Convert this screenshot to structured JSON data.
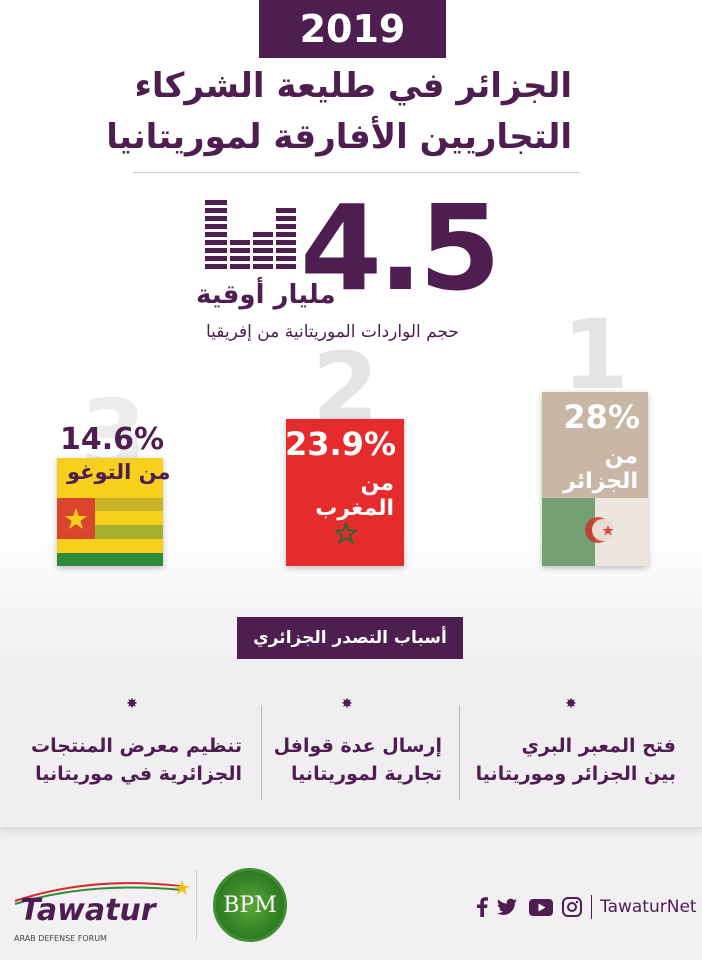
{
  "header": {
    "year": "2019",
    "title_line1": "الجزائر في طليعة الشركاء",
    "title_line2": "التجاريين الأفارقة لموريتانيا"
  },
  "headline_stat": {
    "value": "4.5",
    "unit": "مليار أوقية",
    "caption": "حجم الواردات الموريتانية من إفريقيا"
  },
  "partners": [
    {
      "rank": "1",
      "percent": "28%",
      "label": "من الجزائر",
      "flag": "algeria-flag"
    },
    {
      "rank": "2",
      "percent": "23.9%",
      "label": "من المغرب",
      "flag": "morocco-flag"
    },
    {
      "rank": "3",
      "percent": "14.6%",
      "label": "من التوغو",
      "flag": "togo-flag"
    }
  ],
  "reasons": {
    "heading": "أسباب التصدر الجزائري",
    "items": [
      {
        "line1": "فتح المعبر البري",
        "line2": "بين الجزائر وموريتانيا"
      },
      {
        "line1": "إرسال عدة قوافل",
        "line2": "تجارية لموريتانيا"
      },
      {
        "line1": "تنظيم معرض المنتجات",
        "line2": "الجزائرية في موريتانيا"
      }
    ]
  },
  "footer": {
    "brand": "Tawatur",
    "brand_sub": "ARAB DEFENSE FORUM",
    "partner_logo": "BPM",
    "handle": "TawaturNet",
    "icons": [
      "facebook-icon",
      "twitter-icon",
      "youtube-icon",
      "instagram-icon"
    ]
  },
  "colors": {
    "primary": "#4e1e50",
    "algeria": "#c7b7a4",
    "morocco": "#e52b2b",
    "togo_yellow": "#f7cf1d",
    "togo_green": "#2e8b3a"
  }
}
